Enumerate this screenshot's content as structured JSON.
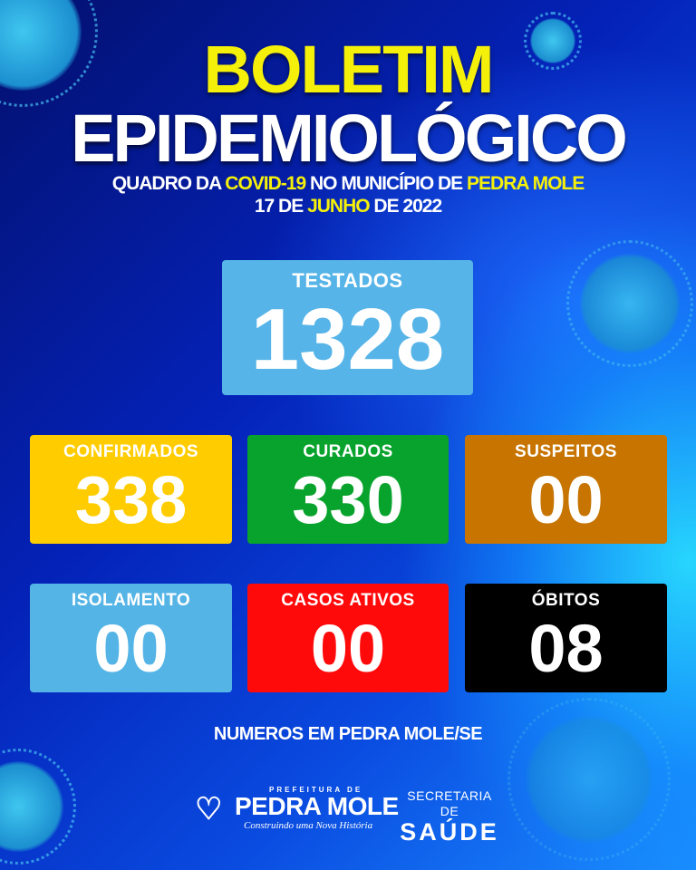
{
  "title": {
    "line1": "BOLETIM",
    "line2": "EPIDEMIOLÓGICO"
  },
  "subtitle": {
    "p1": "QUADRO DA ",
    "p2": "COVID-19",
    "p3": " NO MUNICÍPIO DE ",
    "p4": "PEDRA MOLE"
  },
  "date": {
    "p1": "17 DE ",
    "p2": "JUNHO",
    "p3": " DE 2022"
  },
  "stats": [
    {
      "label": "TESTADOS",
      "value": "1328",
      "color": "#56b4e8"
    },
    {
      "label": "CONFIRMADOS",
      "value": "338",
      "color": "#ffcc00"
    },
    {
      "label": "CURADOS",
      "value": "330",
      "color": "#08a32c"
    },
    {
      "label": "SUSPEITOS",
      "value": "00",
      "color": "#c77400"
    },
    {
      "label": "ISOLAMENTO",
      "value": "00",
      "color": "#55b4e6"
    },
    {
      "label": "CASOS ATIVOS",
      "value": "00",
      "color": "#ff0a0a"
    },
    {
      "label": "ÓBITOS",
      "value": "08",
      "color": "#000000"
    }
  ],
  "footer": "NUMEROS EM PEDRA MOLE/SE",
  "logo_prefeitura": {
    "pre": "PREFEITURA DE",
    "name": "PEDRA MOLE",
    "tagline": "Construindo uma Nova História"
  },
  "logo_secretaria": {
    "line1": "SECRETARIA DE",
    "line2": "SAÚDE"
  }
}
